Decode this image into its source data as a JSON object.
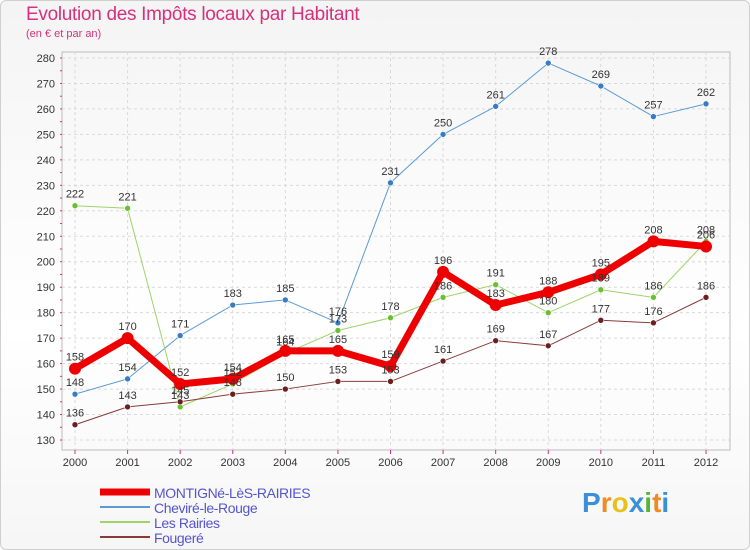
{
  "header": {
    "title": "Evolution des Impôts locaux par Habitant",
    "subtitle": "(en € et par an)"
  },
  "brand": {
    "letters": [
      "P",
      "r",
      "o",
      "x",
      "i",
      "t",
      "i"
    ],
    "colors": [
      "#3a8fd8",
      "#f08a24",
      "#e8c21a",
      "#3a8fd8",
      "#57b43b",
      "#f08a24",
      "#3a8fd8"
    ]
  },
  "chart_data": {
    "type": "line",
    "title": "Evolution des Impôts locaux par Habitant",
    "subtitle": "(en € et par an)",
    "x": [
      "2000",
      "2001",
      "2002",
      "2003",
      "2004",
      "2005",
      "2006",
      "2007",
      "2008",
      "2009",
      "2010",
      "2011",
      "2012"
    ],
    "ylim": [
      130,
      280
    ],
    "yticks": [
      130,
      140,
      150,
      160,
      170,
      180,
      190,
      200,
      210,
      220,
      230,
      240,
      250,
      260,
      270,
      280
    ],
    "grid": true,
    "series": [
      {
        "name": "Cheviré-le-Rouge",
        "color": "#5b9bd5",
        "marker": "#3a7cc0",
        "width": 1,
        "values": [
          148,
          154,
          171,
          183,
          185,
          176,
          231,
          250,
          261,
          278,
          269,
          257,
          262
        ],
        "labels": [
          "148",
          "154",
          "171",
          "183",
          "185",
          "176",
          "231",
          "250",
          "261",
          "278",
          "269",
          "257",
          "262"
        ]
      },
      {
        "name": "Les Rairies",
        "color": "#9ed46a",
        "marker": "#6cc030",
        "width": 1,
        "values": [
          222,
          221,
          143,
          152,
          164,
          173,
          178,
          186,
          191,
          180,
          189,
          186,
          208
        ],
        "labels": [
          "222",
          "221",
          "143",
          "152",
          "164",
          "173",
          "178",
          "186",
          "191",
          "180",
          "189",
          "186",
          "208"
        ]
      },
      {
        "name": "Fougeré",
        "color": "#8b3a3a",
        "marker": "#6b1f1f",
        "width": 1,
        "values": [
          136,
          143,
          145,
          148,
          150,
          153,
          153,
          161,
          169,
          167,
          177,
          176,
          186
        ],
        "labels": [
          "136",
          "143",
          "145",
          "148",
          "150",
          "153",
          "153",
          "161",
          "169",
          "167",
          "177",
          "176",
          "186"
        ]
      },
      {
        "name": "MONTIGNé-LèS-RAIRIES",
        "color": "#ee0000",
        "marker": "#ee0000",
        "width": 7,
        "values": [
          158,
          170,
          152,
          154,
          165,
          165,
          159,
          196,
          183,
          188,
          195,
          208,
          206
        ],
        "labels": [
          "158",
          "170",
          "152",
          "154",
          "165",
          "165",
          "159",
          "196",
          "183",
          "188",
          "195",
          "208",
          "206"
        ]
      }
    ],
    "legend": [
      {
        "name": "MONTIGNé-LèS-RAIRIES",
        "color": "#ee0000",
        "width": 7
      },
      {
        "name": "Cheviré-le-Rouge",
        "color": "#5b9bd5",
        "width": 2
      },
      {
        "name": "Les Rairies",
        "color": "#9ed46a",
        "width": 2
      },
      {
        "name": "Fougeré",
        "color": "#8b3a3a",
        "width": 2
      }
    ]
  }
}
